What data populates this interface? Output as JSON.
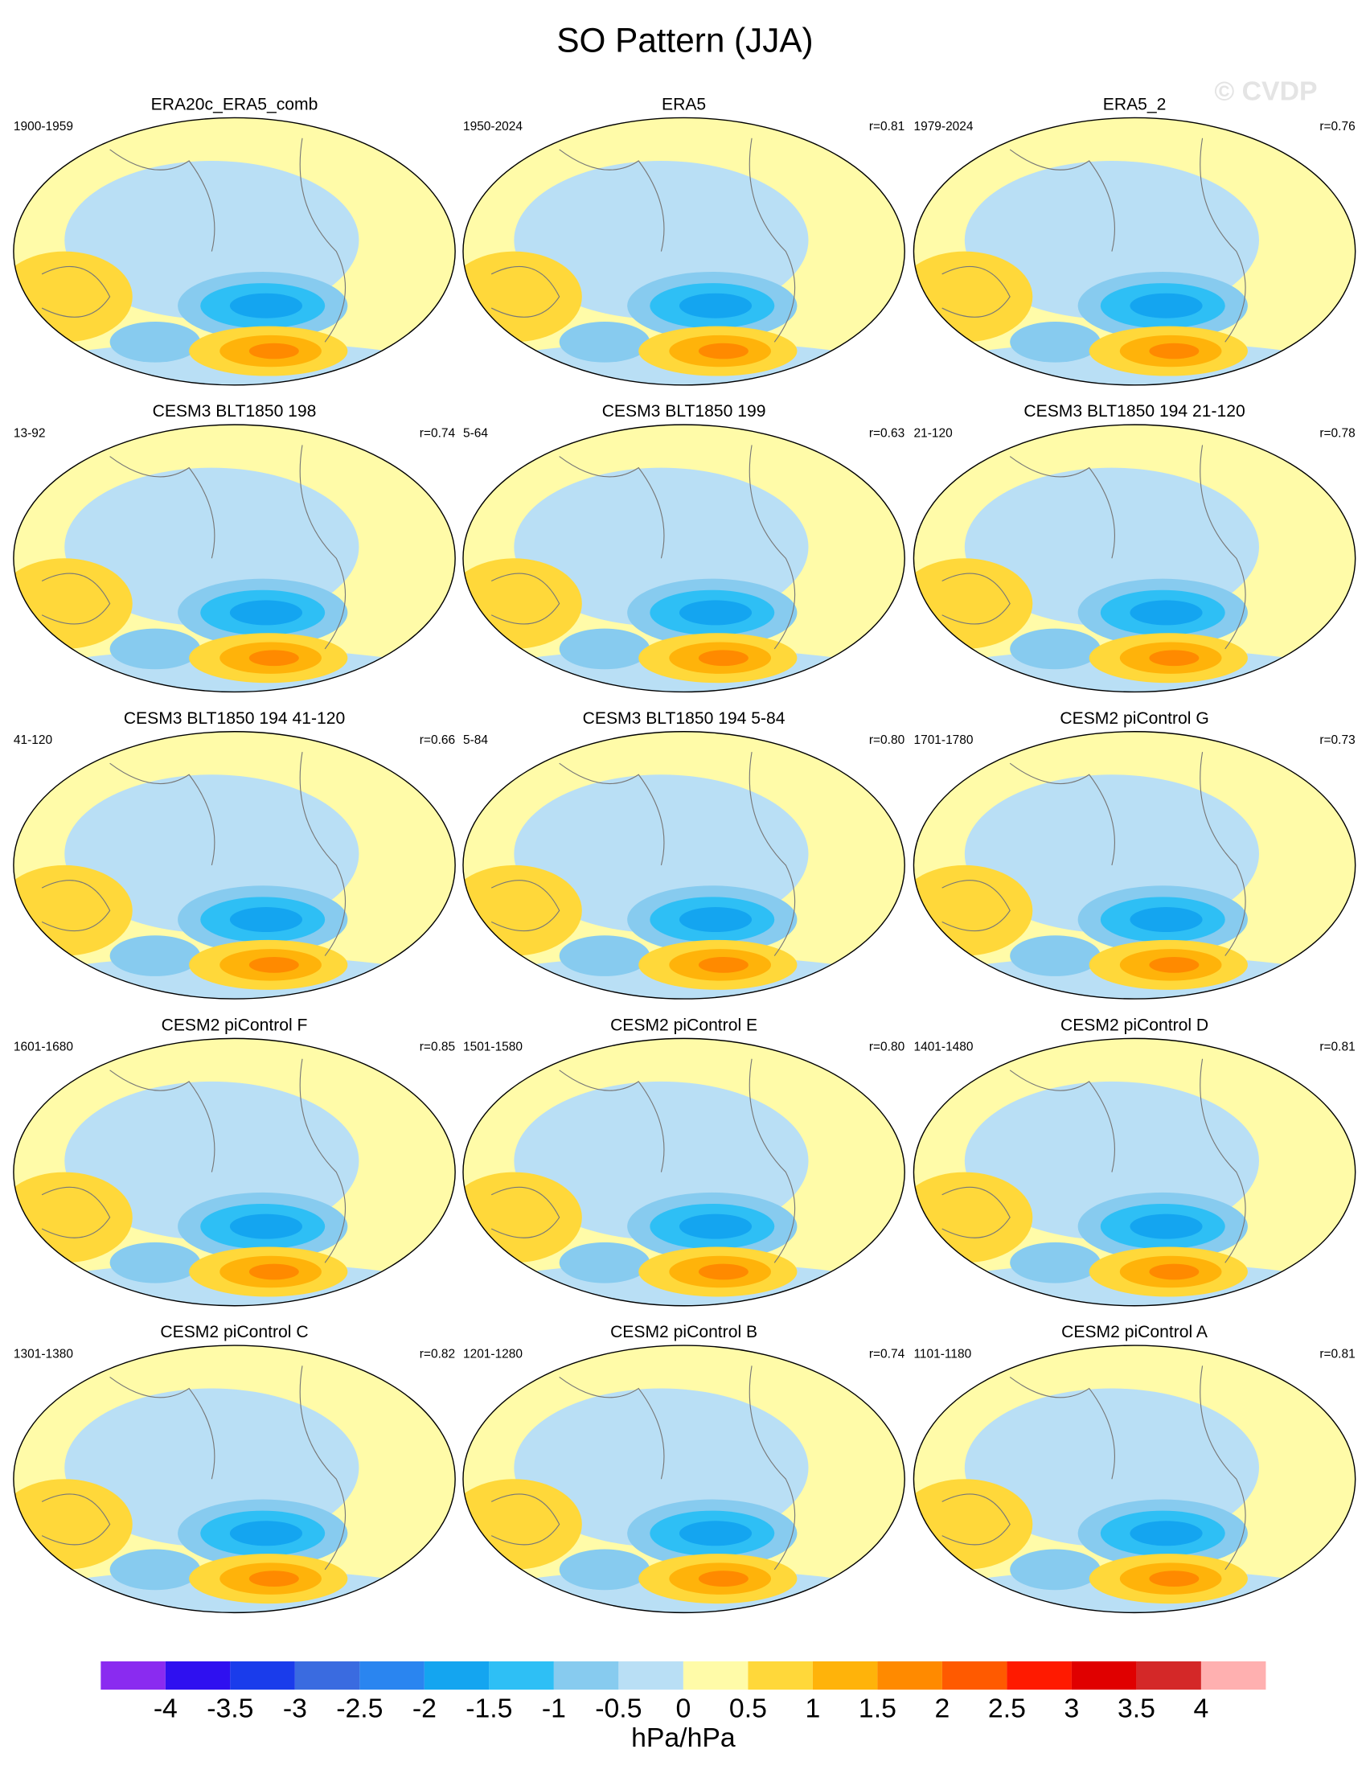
{
  "title": "SO Pattern (JJA)",
  "watermark": "© CVDP",
  "panels": [
    {
      "title": "ERA20c_ERA5_comb",
      "period": "1900-1959"
    },
    {
      "title": "ERA5",
      "period": "1950-2024",
      "r": "r=0.81"
    },
    {
      "title": "ERA5_2",
      "period": "1979-2024",
      "r": "r=0.76"
    },
    {
      "title": "CESM3 BLT1850 198",
      "period": "13-92",
      "r": "r=0.74"
    },
    {
      "title": "CESM3 BLT1850 199",
      "period": "5-64",
      "r": "r=0.63"
    },
    {
      "title": "CESM3 BLT1850 194 21-120",
      "period": "21-120",
      "r": "r=0.78"
    },
    {
      "title": "CESM3 BLT1850 194 41-120",
      "period": "41-120",
      "r": "r=0.66"
    },
    {
      "title": "CESM3 BLT1850 194 5-84",
      "period": "5-84",
      "r": "r=0.80"
    },
    {
      "title": "CESM2 piControl G",
      "period": "1701-1780",
      "r": "r=0.73"
    },
    {
      "title": "CESM2 piControl F",
      "period": "1601-1680",
      "r": "r=0.85"
    },
    {
      "title": "CESM2 piControl E",
      "period": "1501-1580",
      "r": "r=0.80"
    },
    {
      "title": "CESM2 piControl D",
      "period": "1401-1480",
      "r": "r=0.81"
    },
    {
      "title": "CESM2 piControl C",
      "period": "1301-1380",
      "r": "r=0.82"
    },
    {
      "title": "CESM2 piControl B",
      "period": "1201-1280",
      "r": "r=0.74"
    },
    {
      "title": "CESM2 piControl A",
      "period": "1101-1180",
      "r": "r=0.81"
    }
  ],
  "colorbar": {
    "ticks": [
      -4,
      -3.5,
      -3,
      -2.5,
      -2,
      -1.5,
      -1,
      -0.5,
      0,
      0.5,
      1,
      1.5,
      2,
      2.5,
      3,
      3.5,
      4
    ],
    "colors": [
      "#8a2bf0",
      "#2f10f0",
      "#1a3ceb",
      "#3a6be0",
      "#2a85f0",
      "#14a5f0",
      "#2ebff5",
      "#87cbef",
      "#b9dff5",
      "#fffba8",
      "#ffd83a",
      "#ffb30a",
      "#ff8a00",
      "#ff5a00",
      "#ff1a00",
      "#e00000",
      "#d42828",
      "#ffb0b0"
    ],
    "units": "hPa/hPa"
  }
}
